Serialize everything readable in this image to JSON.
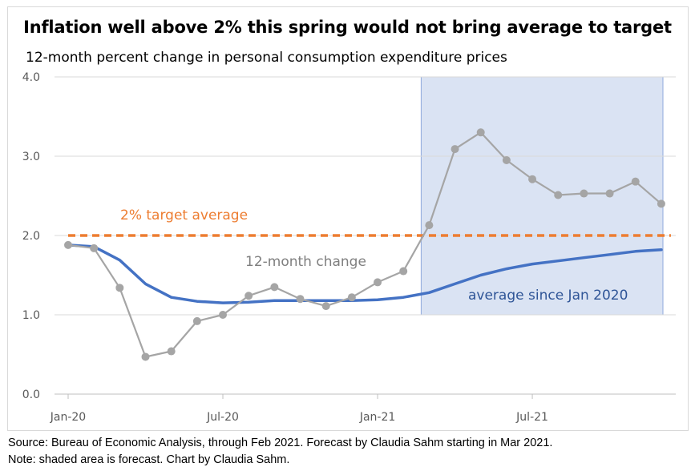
{
  "chart_data": {
    "type": "line",
    "title": "Inflation well above 2% this spring would not bring average to target",
    "subtitle": "12-month percent change in personal consumption expenditure prices",
    "ylim": [
      0,
      4
    ],
    "y_ticks": [
      "0.0",
      "1.0",
      "2.0",
      "3.0",
      "4.0"
    ],
    "x_ticks": [
      "Jan-20",
      "Jul-20",
      "Jan-21",
      "Jul-21"
    ],
    "x": [
      "2020-01",
      "2020-02",
      "2020-03",
      "2020-04",
      "2020-05",
      "2020-06",
      "2020-07",
      "2020-08",
      "2020-09",
      "2020-10",
      "2020-11",
      "2020-12",
      "2021-01",
      "2021-02",
      "2021-03",
      "2021-04",
      "2021-05",
      "2021-06",
      "2021-07",
      "2021-08",
      "2021-09",
      "2021-10",
      "2021-11",
      "2021-12"
    ],
    "grid": true,
    "forecast_start": "2021-03",
    "series": [
      {
        "name": "12-month change",
        "color": "#a5a5a5",
        "markers": true,
        "values": [
          1.88,
          1.84,
          1.34,
          0.47,
          0.54,
          0.92,
          1.0,
          1.24,
          1.35,
          1.2,
          1.11,
          1.22,
          1.41,
          1.55,
          2.13,
          3.09,
          3.3,
          2.95,
          2.71,
          2.51,
          2.53,
          2.53,
          2.68,
          2.4
        ]
      },
      {
        "name": "average since Jan 2020",
        "color": "#4472c4",
        "markers": false,
        "values": [
          1.88,
          1.86,
          1.69,
          1.39,
          1.22,
          1.17,
          1.15,
          1.16,
          1.18,
          1.18,
          1.18,
          1.18,
          1.19,
          1.22,
          1.28,
          1.39,
          1.5,
          1.58,
          1.64,
          1.68,
          1.72,
          1.76,
          1.8,
          1.82
        ]
      }
    ],
    "reference_line": {
      "name": "2% target average",
      "value": 2.0,
      "color": "#ed7d31"
    },
    "forecast_shade_color": "#dae3f3"
  },
  "footer": {
    "line1": "Source: Bureau of Economic Analysis, through Feb 2021. Forecast by Claudia Sahm starting in Mar 2021.",
    "line2": "Note: shaded area is forecast. Chart by Claudia Sahm."
  }
}
